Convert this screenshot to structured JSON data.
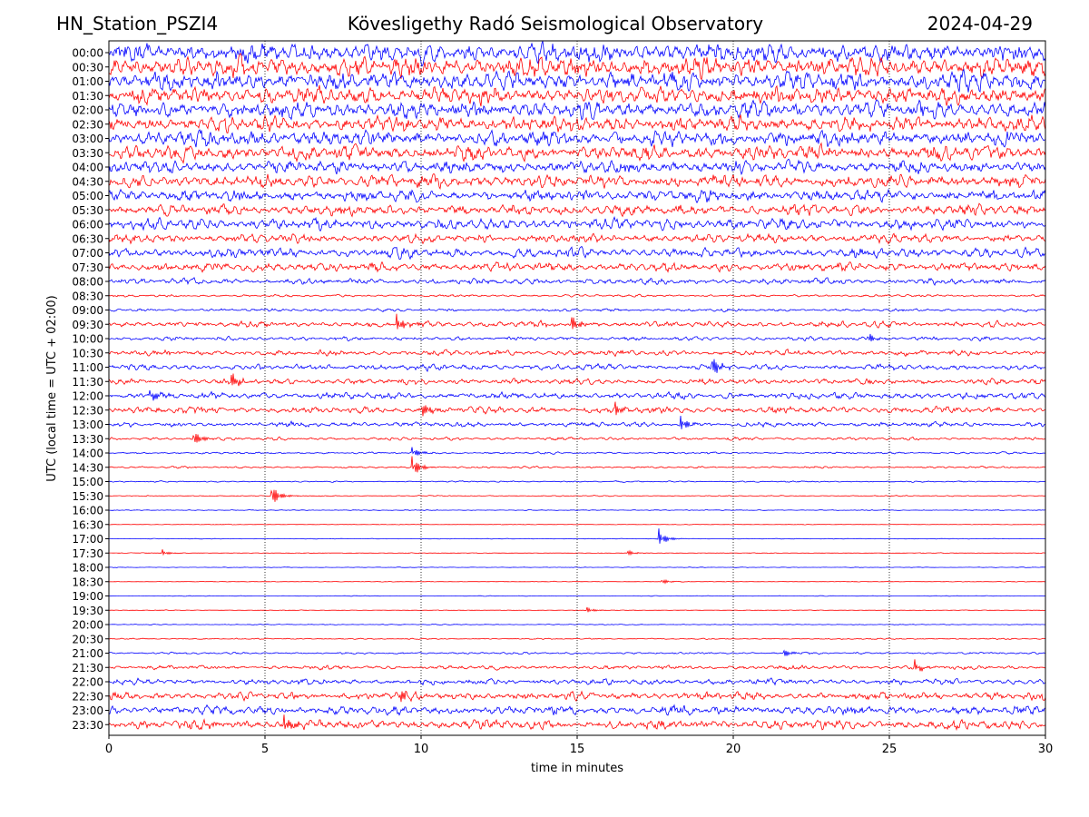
{
  "header": {
    "station": "HN_Station_PSZI4",
    "observatory": "Kövesligethy Radó Seismological Observatory",
    "date": "2024-04-29"
  },
  "chart_data": {
    "type": "line",
    "title": "Kövesligethy Radó Seismological Observatory",
    "xlabel": "time in minutes",
    "ylabel": "UTC (local time = UTC + 02:00)",
    "xlim": [
      0,
      30
    ],
    "x_ticks": [
      "0",
      "5",
      "10",
      "15",
      "20",
      "25",
      "30"
    ],
    "grid": "vertical dotted lines at x = 5, 10, 15, 20, 25",
    "colors": {
      "even_rows": "#0000ff",
      "odd_rows": "#ff0000",
      "grid": "#000000"
    },
    "row_labels": [
      "00:00",
      "00:30",
      "01:00",
      "01:30",
      "02:00",
      "02:30",
      "03:00",
      "03:30",
      "04:00",
      "04:30",
      "05:00",
      "05:30",
      "06:00",
      "06:30",
      "07:00",
      "07:30",
      "08:00",
      "08:30",
      "09:00",
      "09:30",
      "10:00",
      "10:30",
      "11:00",
      "11:30",
      "12:00",
      "12:30",
      "13:00",
      "13:30",
      "14:00",
      "14:30",
      "15:00",
      "15:30",
      "16:00",
      "16:30",
      "17:00",
      "17:30",
      "18:00",
      "18:30",
      "19:00",
      "19:30",
      "20:00",
      "20:30",
      "21:00",
      "21:30",
      "22:00",
      "22:30",
      "23:00",
      "23:30"
    ],
    "row_activity": [
      1.0,
      1.0,
      0.95,
      0.9,
      0.85,
      0.8,
      0.8,
      0.75,
      0.65,
      0.65,
      0.6,
      0.55,
      0.55,
      0.45,
      0.5,
      0.45,
      0.3,
      0.12,
      0.15,
      0.3,
      0.2,
      0.28,
      0.3,
      0.3,
      0.35,
      0.35,
      0.25,
      0.15,
      0.1,
      0.1,
      0.07,
      0.05,
      0.04,
      0.03,
      0.03,
      0.03,
      0.03,
      0.03,
      0.03,
      0.03,
      0.04,
      0.06,
      0.1,
      0.2,
      0.3,
      0.4,
      0.45,
      0.5
    ],
    "events": [
      {
        "row": 19,
        "minute": 9.2,
        "amp": 1.2
      },
      {
        "row": 19,
        "minute": 14.8,
        "amp": 1.1
      },
      {
        "row": 20,
        "minute": 24.3,
        "amp": 0.8
      },
      {
        "row": 22,
        "minute": 19.3,
        "amp": 1.6
      },
      {
        "row": 23,
        "minute": 3.9,
        "amp": 1.1
      },
      {
        "row": 24,
        "minute": 1.3,
        "amp": 0.9
      },
      {
        "row": 25,
        "minute": 10.0,
        "amp": 1.0
      },
      {
        "row": 25,
        "minute": 16.2,
        "amp": 0.9
      },
      {
        "row": 26,
        "minute": 18.3,
        "amp": 1.1
      },
      {
        "row": 27,
        "minute": 2.7,
        "amp": 1.2
      },
      {
        "row": 28,
        "minute": 9.7,
        "amp": 0.8
      },
      {
        "row": 29,
        "minute": 9.7,
        "amp": 1.5
      },
      {
        "row": 31,
        "minute": 5.2,
        "amp": 1.6
      },
      {
        "row": 34,
        "minute": 17.6,
        "amp": 1.2
      },
      {
        "row": 35,
        "minute": 1.7,
        "amp": 0.4
      },
      {
        "row": 35,
        "minute": 16.6,
        "amp": 0.4
      },
      {
        "row": 37,
        "minute": 17.7,
        "amp": 0.4
      },
      {
        "row": 39,
        "minute": 15.3,
        "amp": 0.4
      },
      {
        "row": 42,
        "minute": 21.6,
        "amp": 0.6
      },
      {
        "row": 43,
        "minute": 25.8,
        "amp": 0.9
      },
      {
        "row": 45,
        "minute": 9.3,
        "amp": 0.9
      },
      {
        "row": 47,
        "minute": 5.6,
        "amp": 1.3
      }
    ]
  }
}
